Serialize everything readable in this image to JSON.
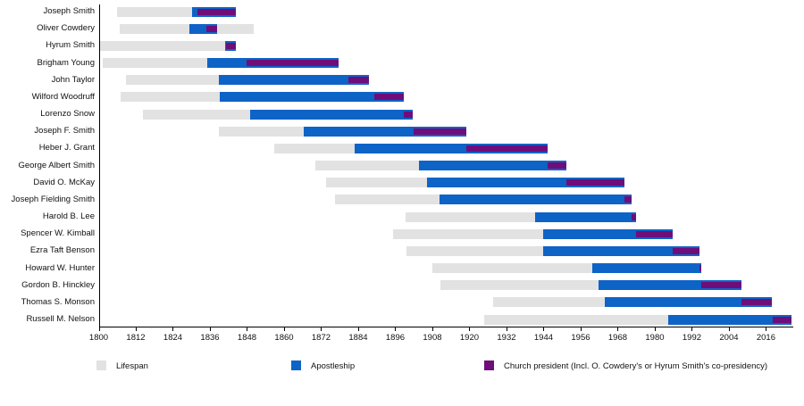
{
  "chart_data": {
    "type": "bar",
    "subtype": "gantt-timeline",
    "title": "",
    "xlabel": "",
    "ylabel": "",
    "x_axis": {
      "min": 1800,
      "max": 2024.4,
      "ticks": [
        1800,
        1812,
        1824,
        1836,
        1848,
        1860,
        1872,
        1884,
        1896,
        1908,
        1920,
        1932,
        1944,
        1956,
        1968,
        1980,
        1992,
        2004,
        2016
      ]
    },
    "legend": [
      {
        "key": "lifespan",
        "label": "Lifespan",
        "color": "#e2e2e2"
      },
      {
        "key": "apostleship",
        "label": "Apostleship",
        "color": "#0e63c6"
      },
      {
        "key": "president",
        "label": "Church president (Incl. O. Cowdery's or Hyrum Smith's co-presidency)",
        "color": "#6f0d7a"
      }
    ],
    "people": [
      {
        "name": "Joseph Smith",
        "lifespan": [
          1805.98,
          1844.49
        ],
        "apostleship": [
          1830.25,
          1844.49
        ],
        "president": [
          1832.07,
          1844.49
        ]
      },
      {
        "name": "Oliver Cowdery",
        "lifespan": [
          1806.76,
          1850.17
        ],
        "apostleship": [
          1829.3,
          1838.27
        ],
        "president": [
          1834.92,
          1838.27
        ]
      },
      {
        "name": "Hyrum Smith",
        "lifespan": [
          1800.11,
          1844.49
        ],
        "apostleship": [
          1840.9,
          1844.49
        ],
        "president": [
          1841.07,
          1844.49
        ]
      },
      {
        "name": "Brigham Young",
        "lifespan": [
          1801.42,
          1877.66
        ],
        "apostleship": [
          1835.12,
          1877.66
        ],
        "president": [
          1847.99,
          1877.66
        ]
      },
      {
        "name": "John Taylor",
        "lifespan": [
          1808.84,
          1887.56
        ],
        "apostleship": [
          1838.97,
          1887.56
        ],
        "president": [
          1880.78,
          1887.56
        ]
      },
      {
        "name": "Wilford Woodruff",
        "lifespan": [
          1807.16,
          1898.67
        ],
        "apostleship": [
          1839.32,
          1898.67
        ],
        "president": [
          1889.27,
          1898.67
        ]
      },
      {
        "name": "Lorenzo Snow",
        "lifespan": [
          1814.25,
          1901.78
        ],
        "apostleship": [
          1849.12,
          1901.78
        ],
        "president": [
          1898.7,
          1901.78
        ]
      },
      {
        "name": "Joseph F. Smith",
        "lifespan": [
          1838.87,
          1918.88
        ],
        "apostleship": [
          1866.5,
          1918.88
        ],
        "president": [
          1901.79,
          1918.88
        ]
      },
      {
        "name": "Heber J. Grant",
        "lifespan": [
          1856.89,
          1945.37
        ],
        "apostleship": [
          1882.79,
          1945.37
        ],
        "president": [
          1918.9,
          1945.37
        ]
      },
      {
        "name": "George Albert Smith",
        "lifespan": [
          1870.25,
          1951.25
        ],
        "apostleship": [
          1903.77,
          1951.25
        ],
        "president": [
          1945.38,
          1951.25
        ]
      },
      {
        "name": "David O. McKay",
        "lifespan": [
          1873.68,
          1970.05
        ],
        "apostleship": [
          1906.27,
          1970.05
        ],
        "president": [
          1951.27,
          1970.05
        ]
      },
      {
        "name": "Joseph Fielding Smith",
        "lifespan": [
          1876.55,
          1972.5
        ],
        "apostleship": [
          1910.26,
          1972.5
        ],
        "president": [
          1970.06,
          1972.5
        ]
      },
      {
        "name": "Harold B. Lee",
        "lifespan": [
          1899.24,
          1973.98
        ],
        "apostleship": [
          1941.27,
          1973.98
        ],
        "president": [
          1972.52,
          1973.98
        ]
      },
      {
        "name": "Spencer W. Kimball",
        "lifespan": [
          1895.24,
          1985.84
        ],
        "apostleship": [
          1943.77,
          1985.84
        ],
        "president": [
          1973.99,
          1985.84
        ]
      },
      {
        "name": "Ezra Taft Benson",
        "lifespan": [
          1899.59,
          1994.41
        ],
        "apostleship": [
          1943.77,
          1994.41
        ],
        "president": [
          1985.86,
          1994.41
        ]
      },
      {
        "name": "Howard W. Hunter",
        "lifespan": [
          1907.87,
          1995.17
        ],
        "apostleship": [
          1959.79,
          1995.17
        ],
        "president": [
          1994.43,
          1995.17
        ]
      },
      {
        "name": "Gordon B. Hinckley",
        "lifespan": [
          1910.48,
          2008.07
        ],
        "apostleship": [
          1961.76,
          2008.07
        ],
        "president": [
          1995.19,
          2008.07
        ]
      },
      {
        "name": "Thomas S. Monson",
        "lifespan": [
          1927.64,
          2018.01
        ],
        "apostleship": [
          1963.77,
          2018.01
        ],
        "president": [
          2008.09,
          2018.01
        ]
      },
      {
        "name": "Russell M. Nelson",
        "lifespan": [
          1924.69,
          2024.3
        ],
        "apostleship": [
          1984.28,
          2024.3
        ],
        "president": [
          2018.04,
          2024.3
        ]
      }
    ]
  },
  "colors": {
    "lifespan": "#e2e2e2",
    "apostleship": "#0e63c6",
    "president": "#6f0d7a",
    "axis": "#000000",
    "text": "#111111",
    "background": "#ffffff"
  }
}
